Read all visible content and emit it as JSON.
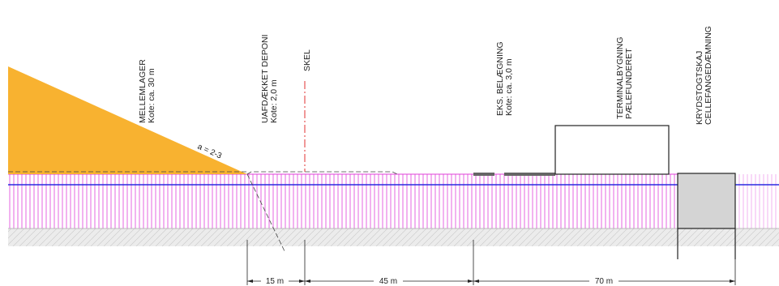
{
  "labels": {
    "mellemlager": {
      "line1": "MELLEMLAGER",
      "line2": "Kote: ca. 30 m"
    },
    "uafdaekket": {
      "line1": "UAFDÆKKET DEPONI",
      "line2": "Kote: 2,0 m"
    },
    "skel": {
      "line1": "SKEL"
    },
    "eks_belaegning": {
      "line1": "EKS. BELÆGNING",
      "line2": "Kote: ca. 3,0 m"
    },
    "terminal": {
      "line1": "TERMINALBYGNING",
      "line2": "PÆLEFUNDERET"
    },
    "krydstogt": {
      "line1": "KRYDSTOGTSKAJ",
      "line2": "CELLEFANGEDÆMNING"
    }
  },
  "slope_label": "a = 2-3",
  "dimensions": {
    "d1": "15 m",
    "d2": "45 m",
    "d3": "70 m"
  },
  "colors": {
    "stockpile": "#f8b230",
    "fill_hatch": "#e040d8",
    "water": "#2a2ae0",
    "quay": "#d4d4d4",
    "outline": "#222222"
  }
}
